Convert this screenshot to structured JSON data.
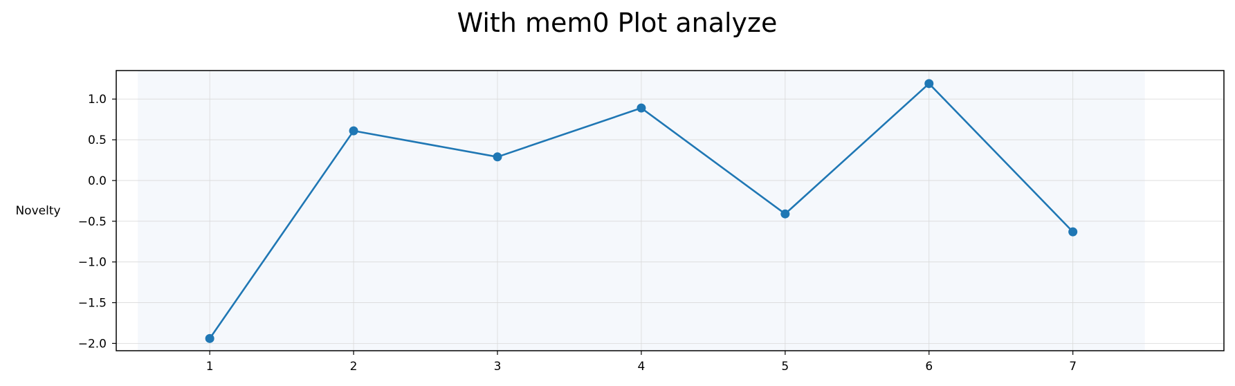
{
  "chart_data": {
    "type": "line",
    "title": "With mem0 Plot analyze",
    "xlabel": "",
    "ylabel": "Novelty",
    "x": [
      1,
      2,
      3,
      4,
      5,
      6,
      7
    ],
    "series": [
      {
        "values": [
          -1.94,
          0.61,
          0.29,
          0.89,
          -0.41,
          1.19,
          -0.63
        ]
      }
    ],
    "xticks": [
      1,
      2,
      3,
      4,
      5,
      6,
      7
    ],
    "xtick_labels": [
      "1",
      "2",
      "3",
      "4",
      "5",
      "6",
      "7"
    ],
    "yticks": [
      1.0,
      0.5,
      0.0,
      -0.5,
      -1.0,
      -1.5,
      -2.0
    ],
    "ytick_labels": [
      "1.0",
      "0.5",
      "0.0",
      "−0.5",
      "−1.0",
      "−1.5",
      "−2.0"
    ],
    "xlim": [
      0.35,
      8.05
    ],
    "ylim": [
      -2.09,
      1.35
    ],
    "highlight_span": [
      0.5,
      7.5
    ],
    "grid": true,
    "colors": {
      "line": "#1f77b4",
      "marker": "#1f77b4",
      "highlight": "#f5f8fc",
      "grid": "#d9d9d9",
      "axes": "#000000"
    }
  }
}
